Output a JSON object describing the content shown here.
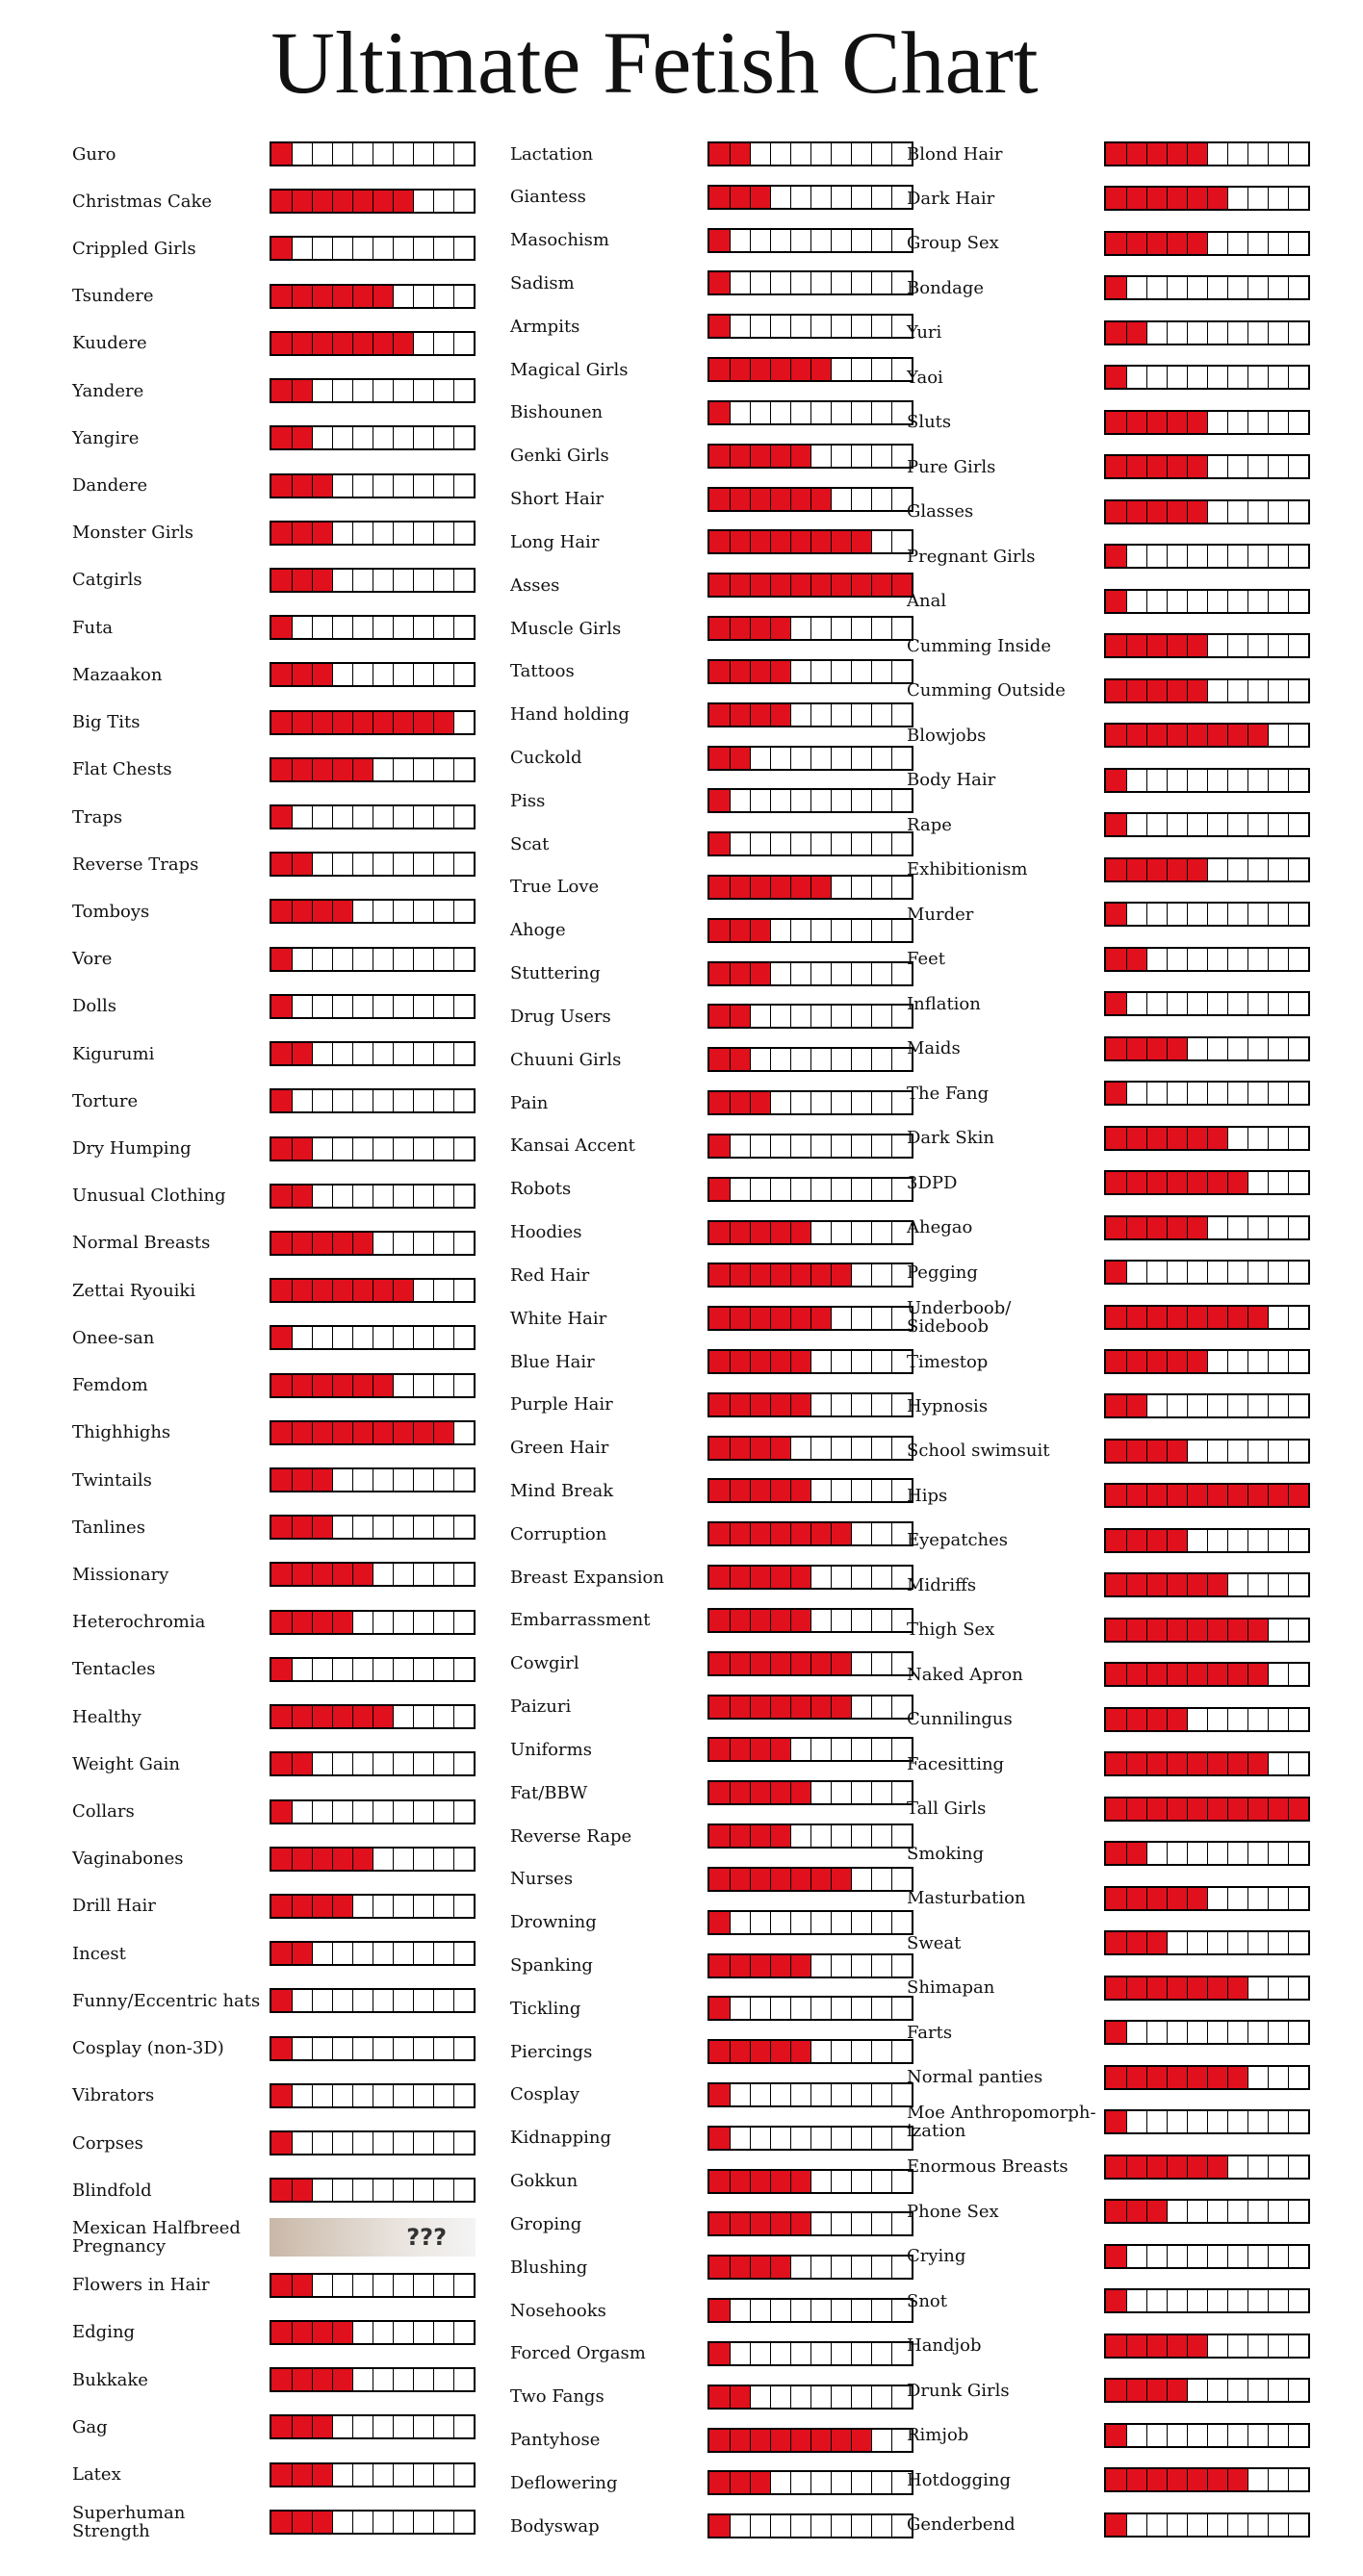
{
  "title": "Ultimate Fetish Chart",
  "columns": [
    [
      {
        "label": "Guro",
        "value": 1
      },
      {
        "label": "Christmas Cake",
        "value": 7
      },
      {
        "label": "Crippled Girls",
        "value": 1
      },
      {
        "label": "Tsundere",
        "value": 6
      },
      {
        "label": "Kuudere",
        "value": 7
      },
      {
        "label": "Yandere",
        "value": 2
      },
      {
        "label": "Yangire",
        "value": 2
      },
      {
        "label": "Dandere",
        "value": 3
      },
      {
        "label": "Monster Girls",
        "value": 3
      },
      {
        "label": "Catgirls",
        "value": 3
      },
      {
        "label": "Futa",
        "value": 1
      },
      {
        "label": "Mazaakon",
        "value": 3
      },
      {
        "label": "Big Tits",
        "value": 9
      },
      {
        "label": "Flat Chests",
        "value": 5
      },
      {
        "label": "Traps",
        "value": 1
      },
      {
        "label": "Reverse Traps",
        "value": 2
      },
      {
        "label": "Tomboys",
        "value": 4
      },
      {
        "label": "Vore",
        "value": 1
      },
      {
        "label": "Dolls",
        "value": 1
      },
      {
        "label": "Kigurumi",
        "value": 2
      },
      {
        "label": "Torture",
        "value": 1
      },
      {
        "label": "Dry Humping",
        "value": 2
      },
      {
        "label": "Unusual Clothing",
        "value": 2
      },
      {
        "label": "Normal Breasts",
        "value": 5
      },
      {
        "label": "Zettai Ryouiki",
        "value": 7
      },
      {
        "label": "Onee-san",
        "value": 1
      },
      {
        "label": "Femdom",
        "value": 6
      },
      {
        "label": "Thighhighs",
        "value": 9
      },
      {
        "label": "Twintails",
        "value": 3
      },
      {
        "label": "Tanlines",
        "value": 3
      },
      {
        "label": "Missionary",
        "value": 5
      },
      {
        "label": "Heterochromia",
        "value": 4
      },
      {
        "label": "Tentacles",
        "value": 1
      },
      {
        "label": "Healthy",
        "value": 6
      },
      {
        "label": "Weight Gain",
        "value": 2
      },
      {
        "label": "Collars",
        "value": 1
      },
      {
        "label": "Vaginabones",
        "value": 5
      },
      {
        "label": "Drill Hair",
        "value": 4
      },
      {
        "label": "Incest",
        "value": 2
      },
      {
        "label": "Funny/Eccentric hats",
        "value": 1
      },
      {
        "label": "Cosplay (non-3D)",
        "value": 1
      },
      {
        "label": "Vibrators",
        "value": 1
      },
      {
        "label": "Corpses",
        "value": 1
      },
      {
        "label": "Blindfold",
        "value": 2
      },
      {
        "label": "Mexican Halfbreed Pregnancy",
        "note": "???"
      },
      {
        "label": "Flowers in Hair",
        "value": 2
      },
      {
        "label": "Edging",
        "value": 4
      },
      {
        "label": "Bukkake",
        "value": 4
      },
      {
        "label": "Gag",
        "value": 3
      },
      {
        "label": "Latex",
        "value": 3
      },
      {
        "label": "Superhuman Strength",
        "value": 3
      }
    ],
    [
      {
        "label": "Lactation",
        "value": 2
      },
      {
        "label": "Giantess",
        "value": 3
      },
      {
        "label": "Masochism",
        "value": 1
      },
      {
        "label": "Sadism",
        "value": 1
      },
      {
        "label": "Armpits",
        "value": 1
      },
      {
        "label": "Magical Girls",
        "value": 6
      },
      {
        "label": "Bishounen",
        "value": 1
      },
      {
        "label": "Genki Girls",
        "value": 5
      },
      {
        "label": "Short Hair",
        "value": 6
      },
      {
        "label": "Long Hair",
        "value": 8
      },
      {
        "label": "Asses",
        "value": 10
      },
      {
        "label": "Muscle Girls",
        "value": 4
      },
      {
        "label": "Tattoos",
        "value": 4
      },
      {
        "label": "Hand holding",
        "value": 4
      },
      {
        "label": "Cuckold",
        "value": 2
      },
      {
        "label": "Piss",
        "value": 1
      },
      {
        "label": "Scat",
        "value": 1
      },
      {
        "label": "True Love",
        "value": 6
      },
      {
        "label": "Ahoge",
        "value": 3
      },
      {
        "label": "Stuttering",
        "value": 3
      },
      {
        "label": "Drug Users",
        "value": 2
      },
      {
        "label": "Chuuni Girls",
        "value": 2
      },
      {
        "label": "Pain",
        "value": 3
      },
      {
        "label": "Kansai Accent",
        "value": 1
      },
      {
        "label": "Robots",
        "value": 1
      },
      {
        "label": "Hoodies",
        "value": 5
      },
      {
        "label": "Red Hair",
        "value": 7
      },
      {
        "label": "White Hair",
        "value": 6
      },
      {
        "label": "Blue Hair",
        "value": 5
      },
      {
        "label": "Purple Hair",
        "value": 5
      },
      {
        "label": "Green Hair",
        "value": 4
      },
      {
        "label": "Mind Break",
        "value": 5
      },
      {
        "label": "Corruption",
        "value": 7
      },
      {
        "label": "Breast Expansion",
        "value": 5
      },
      {
        "label": "Embarrassment",
        "value": 5
      },
      {
        "label": "Cowgirl",
        "value": 7
      },
      {
        "label": "Paizuri",
        "value": 7
      },
      {
        "label": "Uniforms",
        "value": 4
      },
      {
        "label": "Fat/BBW",
        "value": 5
      },
      {
        "label": "Reverse Rape",
        "value": 4
      },
      {
        "label": "Nurses",
        "value": 7
      },
      {
        "label": "Drowning",
        "value": 1
      },
      {
        "label": "Spanking",
        "value": 5
      },
      {
        "label": "Tickling",
        "value": 1
      },
      {
        "label": "Piercings",
        "value": 5
      },
      {
        "label": "Cosplay",
        "value": 1
      },
      {
        "label": "Kidnapping",
        "value": 1
      },
      {
        "label": "Gokkun",
        "value": 5
      },
      {
        "label": "Groping",
        "value": 5
      },
      {
        "label": "Blushing",
        "value": 4
      },
      {
        "label": "Nosehooks",
        "value": 1
      },
      {
        "label": "Forced Orgasm",
        "value": 1
      },
      {
        "label": "Two Fangs",
        "value": 2
      },
      {
        "label": "Pantyhose",
        "value": 8
      },
      {
        "label": "Deflowering",
        "value": 3
      },
      {
        "label": "Bodyswap",
        "value": 1
      }
    ],
    [
      {
        "label": "Blond Hair",
        "value": 5
      },
      {
        "label": "Dark Hair",
        "value": 6
      },
      {
        "label": "Group Sex",
        "value": 5
      },
      {
        "label": "Bondage",
        "value": 1
      },
      {
        "label": "Yuri",
        "value": 2
      },
      {
        "label": "Yaoi",
        "value": 1
      },
      {
        "label": "Sluts",
        "value": 5
      },
      {
        "label": "Pure Girls",
        "value": 5
      },
      {
        "label": "Glasses",
        "value": 5
      },
      {
        "label": "Pregnant Girls",
        "value": 1
      },
      {
        "label": "Anal",
        "value": 1
      },
      {
        "label": "Cumming Inside",
        "value": 5
      },
      {
        "label": "Cumming Outside",
        "value": 5
      },
      {
        "label": "Blowjobs",
        "value": 8
      },
      {
        "label": "Body Hair",
        "value": 1
      },
      {
        "label": "Rape",
        "value": 1
      },
      {
        "label": "Exhibitionism",
        "value": 5
      },
      {
        "label": "Murder",
        "value": 1
      },
      {
        "label": "Feet",
        "value": 2
      },
      {
        "label": "Inflation",
        "value": 1
      },
      {
        "label": "Maids",
        "value": 4
      },
      {
        "label": "The Fang",
        "value": 1
      },
      {
        "label": "Dark Skin",
        "value": 6
      },
      {
        "label": "3DPD",
        "value": 7
      },
      {
        "label": "Ahegao",
        "value": 5
      },
      {
        "label": "Pegging",
        "value": 1
      },
      {
        "label": "Underboob/ Sideboob",
        "value": 8
      },
      {
        "label": "Timestop",
        "value": 5
      },
      {
        "label": "Hypnosis",
        "value": 2
      },
      {
        "label": "School swimsuit",
        "value": 4
      },
      {
        "label": "Hips",
        "value": 10
      },
      {
        "label": "Eyepatches",
        "value": 4
      },
      {
        "label": "Midriffs",
        "value": 6
      },
      {
        "label": "Thigh Sex",
        "value": 8
      },
      {
        "label": "Naked Apron",
        "value": 8
      },
      {
        "label": "Cunnilingus",
        "value": 4
      },
      {
        "label": "Facesitting",
        "value": 8
      },
      {
        "label": "Tall Girls",
        "value": 10
      },
      {
        "label": "Smoking",
        "value": 2
      },
      {
        "label": "Masturbation",
        "value": 5
      },
      {
        "label": "Sweat",
        "value": 3
      },
      {
        "label": "Shimapan",
        "value": 7
      },
      {
        "label": "Farts",
        "value": 1
      },
      {
        "label": "Normal panties",
        "value": 7
      },
      {
        "label": "Moe Anthropomorph-ization",
        "value": 1
      },
      {
        "label": "Enormous Breasts",
        "value": 6
      },
      {
        "label": "Phone Sex",
        "value": 3
      },
      {
        "label": "Crying",
        "value": 1
      },
      {
        "label": "Snot",
        "value": 1
      },
      {
        "label": "Handjob",
        "value": 5
      },
      {
        "label": "Drunk Girls",
        "value": 4
      },
      {
        "label": "Rimjob",
        "value": 1
      },
      {
        "label": "Hotdogging",
        "value": 7
      },
      {
        "label": "Genderbend",
        "value": 1
      }
    ]
  ]
}
